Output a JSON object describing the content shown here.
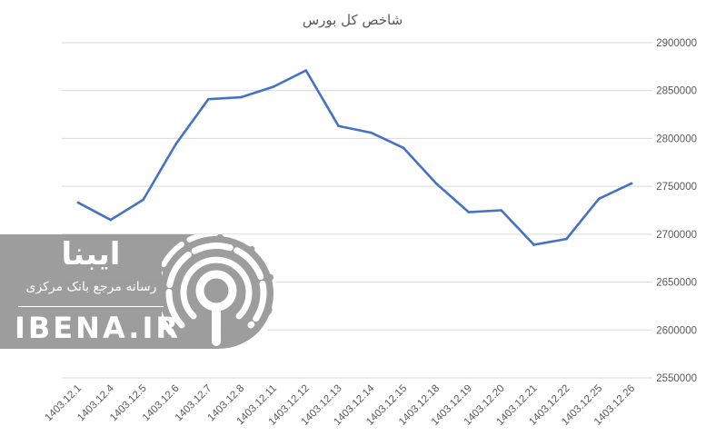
{
  "chart_data": {
    "type": "line",
    "title": "شاخص کل بورس",
    "xlabel": "",
    "ylabel": "",
    "categories": [
      "1403.12.1",
      "1403.12.4",
      "1403.12.5",
      "1403.12.6",
      "1403.12.7",
      "1403.12.8",
      "1403.12.11",
      "1403.12.12",
      "1403.12.13",
      "1403.12.14",
      "1403.12.15",
      "1403.12.18",
      "1403.12.19",
      "1403.12.20",
      "1403.12.21",
      "1403.12.22",
      "1403.12.25",
      "1403.12.26"
    ],
    "values": [
      2733000,
      2715000,
      2736000,
      2794000,
      2841000,
      2843000,
      2854000,
      2871000,
      2813000,
      2806000,
      2790000,
      2753000,
      2723000,
      2725000,
      2689000,
      2695000,
      2737000,
      2753000
    ],
    "ylim": [
      2550000,
      2900000
    ],
    "yticks": [
      "2550000",
      "2600000",
      "2650000",
      "2700000",
      "2750000",
      "2800000",
      "2850000",
      "2900000"
    ],
    "y_axis_side": "right",
    "grid": true,
    "legend": "none",
    "line_color": "#4472C4"
  },
  "watermark": {
    "name_fa": "ایبنا",
    "tagline_fa": "رسانه مرجع بانک مرکزی",
    "site": "IBENA.IR"
  }
}
